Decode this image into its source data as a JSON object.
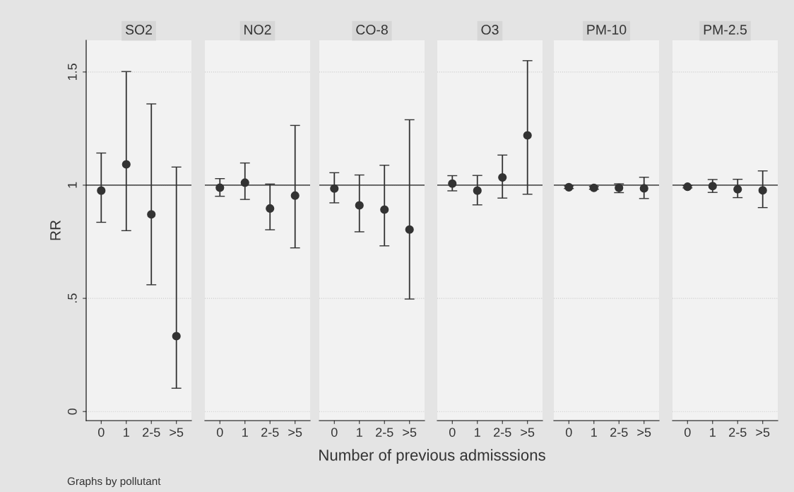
{
  "chart_data": [
    {
      "type": "scatter",
      "title": "SO2",
      "ylabel": "RR",
      "annotations": [
        "Graphs by pollutant"
      ],
      "categories": [
        "0",
        "1",
        "2-5",
        ">5"
      ],
      "values": [
        0.976,
        1.092,
        0.871,
        0.333
      ],
      "errors": [
        [
          0.836,
          1.142
        ],
        [
          0.799,
          1.502
        ],
        [
          0.56,
          1.359
        ],
        [
          0.103,
          1.08
        ]
      ],
      "color": "#333333",
      "marker": "circle",
      "ylim": [
        -0.04,
        1.64
      ],
      "yticks": [
        0,
        {
          "value": 0.5,
          "label": ".5"
        },
        1,
        1.5
      ],
      "ref_lines": [
        {
          "axis": "y",
          "value": 1
        }
      ],
      "grid": "y"
    },
    {
      "type": "scatter",
      "title": "NO2",
      "categories": [
        "0",
        "1",
        "2-5",
        ">5"
      ],
      "values": [
        0.989,
        1.011,
        0.897,
        0.954
      ],
      "errors": [
        [
          0.951,
          1.029
        ],
        [
          0.937,
          1.098
        ],
        [
          0.803,
          1.005
        ],
        [
          0.723,
          1.264
        ]
      ],
      "color": "#333333",
      "marker": "circle",
      "ylim": [
        -0.04,
        1.64
      ],
      "yticks": [
        0,
        0.5,
        1,
        1.5
      ],
      "tick_labels": "x",
      "ref_lines": [
        {
          "axis": "y",
          "value": 1
        }
      ],
      "grid": "y"
    },
    {
      "type": "scatter",
      "title": "CO-8",
      "xlabel": "Number of previous admisssions",
      "categories": [
        "0",
        "1",
        "2-5",
        ">5"
      ],
      "values": [
        0.985,
        0.911,
        0.892,
        0.804
      ],
      "errors": [
        [
          0.922,
          1.055
        ],
        [
          0.794,
          1.045
        ],
        [
          0.732,
          1.088
        ],
        [
          0.497,
          1.289
        ]
      ],
      "color": "#333333",
      "marker": "circle",
      "ylim": [
        -0.04,
        1.64
      ],
      "yticks": [
        0,
        0.5,
        1,
        1.5
      ],
      "tick_labels": "x",
      "ref_lines": [
        {
          "axis": "y",
          "value": 1
        }
      ],
      "grid": "y"
    },
    {
      "type": "scatter",
      "title": "O3",
      "categories": [
        "0",
        "1",
        "2-5",
        ">5"
      ],
      "values": [
        1.007,
        0.976,
        1.034,
        1.22
      ],
      "errors": [
        [
          0.975,
          1.042
        ],
        [
          0.913,
          1.043
        ],
        [
          0.943,
          1.133
        ],
        [
          0.96,
          1.55
        ]
      ],
      "color": "#333333",
      "marker": "circle",
      "ylim": [
        -0.04,
        1.64
      ],
      "yticks": [
        0,
        0.5,
        1,
        1.5
      ],
      "tick_labels": "x",
      "ref_lines": [
        {
          "axis": "y",
          "value": 1
        }
      ],
      "grid": "y"
    },
    {
      "type": "scatter",
      "title": "PM-10",
      "categories": [
        "0",
        "1",
        "2-5",
        ">5"
      ],
      "values": [
        0.991,
        0.988,
        0.988,
        0.986
      ],
      "errors": [
        [
          0.985,
          0.997
        ],
        [
          0.982,
          0.994
        ],
        [
          0.967,
          1.006
        ],
        [
          0.941,
          1.035
        ]
      ],
      "color": "#333333",
      "marker": "circle",
      "ylim": [
        -0.04,
        1.64
      ],
      "yticks": [
        0,
        0.5,
        1,
        1.5
      ],
      "tick_labels": "x",
      "ref_lines": [
        {
          "axis": "y",
          "value": 1
        }
      ],
      "grid": "y"
    },
    {
      "type": "scatter",
      "title": "PM-2.5",
      "categories": [
        "0",
        "1",
        "2-5",
        ">5"
      ],
      "values": [
        0.993,
        0.996,
        0.982,
        0.977
      ],
      "errors": [
        [
          0.988,
          0.998
        ],
        [
          0.968,
          1.025
        ],
        [
          0.945,
          1.026
        ],
        [
          0.901,
          1.063
        ]
      ],
      "color": "#333333",
      "marker": "circle",
      "ylim": [
        -0.04,
        1.64
      ],
      "yticks": [
        0,
        0.5,
        1,
        1.5
      ],
      "tick_labels": "x",
      "ref_lines": [
        {
          "axis": "y",
          "value": 1
        }
      ],
      "grid": "y"
    }
  ]
}
